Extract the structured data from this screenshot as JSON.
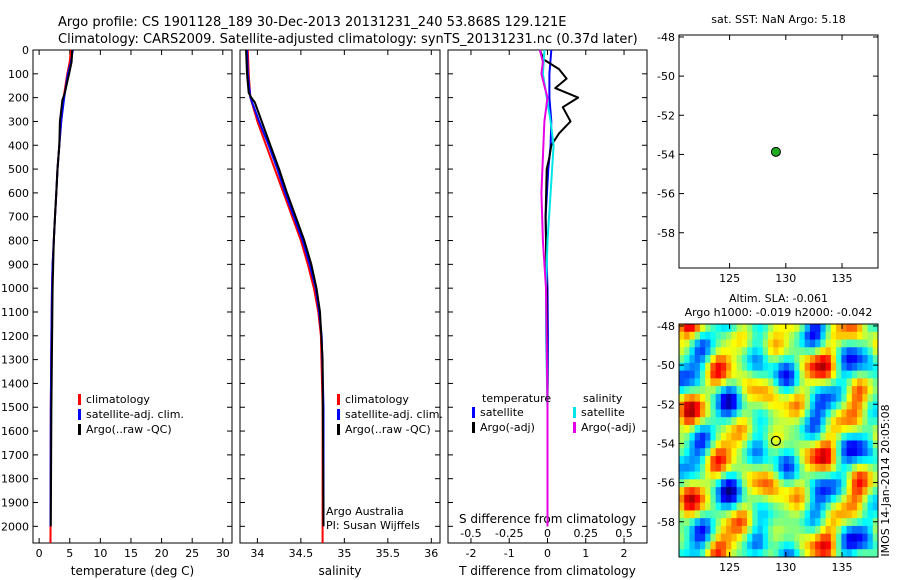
{
  "header": {
    "line1": "Argo profile: CS 1901128_189 30-Dec-2013 20131231_240 53.868S 129.121E",
    "line2": "Climatology: CARS2009. Satellite-adjusted climatology: synTS_20131231.nc (0.37d later)"
  },
  "colors": {
    "climatology": "#ff0000",
    "satellite": "#0000ff",
    "argo": "#000000",
    "s_satellite": "#00e5e5",
    "s_argo": "#e600e6",
    "marker_fill": "#22aa22"
  },
  "chart_data": [
    {
      "id": "temperature",
      "type": "line",
      "xlabel": "temperature (deg C)",
      "ylabel": "",
      "xlim": [
        -1,
        31.5
      ],
      "ylim": [
        0,
        2070
      ],
      "y_reversed": true,
      "grid": false,
      "xticks": [
        0,
        5,
        10,
        15,
        20,
        25,
        30
      ],
      "yticks": [
        0,
        100,
        200,
        300,
        400,
        500,
        600,
        700,
        800,
        900,
        1000,
        1100,
        1200,
        1300,
        1400,
        1500,
        1600,
        1700,
        1800,
        1900,
        2000
      ],
      "legend": {
        "position": "lower-center",
        "entries": [
          "climatology",
          "satellite-adj. clim.",
          "Argo(..raw -QC)"
        ]
      },
      "series": [
        {
          "name": "climatology",
          "color": "climatology",
          "x": [
            5.2,
            5.0,
            4.6,
            4.0,
            3.6,
            3.3,
            3.0,
            2.8,
            2.6,
            2.4,
            2.2,
            2.1,
            2.0,
            1.9,
            1.85
          ],
          "y": [
            0,
            50,
            100,
            200,
            300,
            400,
            500,
            600,
            700,
            800,
            900,
            1000,
            1200,
            1500,
            2070
          ]
        },
        {
          "name": "satellite-adj. clim.",
          "color": "satellite",
          "x": [
            5.5,
            5.2,
            4.7,
            4.1,
            3.6,
            3.3,
            3.0,
            2.8,
            2.6,
            2.4,
            2.2,
            2.1,
            2.0,
            1.9,
            1.85
          ],
          "y": [
            0,
            50,
            100,
            200,
            300,
            400,
            500,
            600,
            700,
            800,
            900,
            1000,
            1200,
            1500,
            2000
          ]
        },
        {
          "name": "Argo(..raw -QC)",
          "color": "argo",
          "x": [
            5.4,
            5.3,
            4.9,
            4.2,
            3.8,
            3.4,
            3.3,
            3.0,
            2.8,
            2.6,
            2.4,
            2.2,
            2.0,
            1.9
          ],
          "y": [
            0,
            50,
            100,
            180,
            210,
            300,
            400,
            500,
            600,
            700,
            800,
            1000,
            1500,
            2000
          ]
        }
      ]
    },
    {
      "id": "salinity",
      "type": "line",
      "xlabel": "salinity",
      "ylabel": "",
      "xlim": [
        33.8,
        36.1
      ],
      "ylim": [
        0,
        2070
      ],
      "y_reversed": true,
      "grid": false,
      "xticks": [
        34,
        34.5,
        35,
        35.5,
        36
      ],
      "xticklabels": [
        "34",
        "34.5",
        "35",
        "35.5",
        "36"
      ],
      "legend": {
        "position": "lower-center",
        "entries": [
          "climatology",
          "satellite-adj. clim.",
          "Argo(..raw -QC)"
        ]
      },
      "annotation_lines": [
        "Argo Australia",
        "PI: Susan Wijffels"
      ],
      "series": [
        {
          "name": "climatology",
          "color": "climatology",
          "x": [
            33.89,
            33.9,
            33.92,
            34.0,
            34.1,
            34.2,
            34.3,
            34.4,
            34.5,
            34.58,
            34.65,
            34.7,
            34.73,
            34.75,
            34.75
          ],
          "y": [
            0,
            100,
            200,
            300,
            400,
            500,
            600,
            700,
            800,
            900,
            1000,
            1100,
            1200,
            1500,
            2070
          ]
        },
        {
          "name": "satellite-adj. clim.",
          "color": "satellite",
          "x": [
            33.88,
            33.89,
            33.92,
            34.02,
            34.13,
            34.23,
            34.32,
            34.42,
            34.52,
            34.6,
            34.67,
            34.71,
            34.74,
            34.76,
            34.76
          ],
          "y": [
            0,
            100,
            200,
            300,
            400,
            500,
            600,
            700,
            800,
            900,
            1000,
            1100,
            1200,
            1500,
            2000
          ]
        },
        {
          "name": "Argo(..raw -QC)",
          "color": "argo",
          "x": [
            33.87,
            33.88,
            33.9,
            33.93,
            33.97,
            34.05,
            34.15,
            34.25,
            34.34,
            34.44,
            34.54,
            34.62,
            34.68,
            34.72,
            34.75,
            34.76
          ],
          "y": [
            0,
            100,
            180,
            200,
            220,
            300,
            400,
            500,
            600,
            700,
            800,
            900,
            1000,
            1100,
            1300,
            2000
          ]
        }
      ]
    },
    {
      "id": "difference",
      "type": "line",
      "xlabel": "T difference from climatology",
      "xlabel_top": "S difference from climatology",
      "ylabel": "",
      "xlim": [
        -2.6,
        2.6
      ],
      "xlim_salinity": [
        -0.65,
        0.65
      ],
      "ylim": [
        0,
        2070
      ],
      "y_reversed": true,
      "grid": false,
      "xticks": [
        -2,
        -1,
        0,
        1,
        2
      ],
      "xticks_salinity": [
        -0.5,
        -0.25,
        0,
        0.25,
        0.5
      ],
      "xticklabels_salinity": [
        "-0.5",
        "-0.25",
        "0",
        "0.25",
        "0.5"
      ],
      "legend": {
        "position": "lower-center",
        "groups": [
          {
            "title": "temperature",
            "entries": [
              "satellite",
              "Argo(-adj)"
            ]
          },
          {
            "title": "salinity",
            "entries": [
              "satellite",
              "Argo(-adj)"
            ]
          }
        ]
      },
      "series": [
        {
          "name": "satellite",
          "group": "temperature",
          "color": "satellite",
          "x": [
            0.1,
            0.05,
            0.05,
            0.1,
            0.08,
            0.02,
            -0.05,
            -0.02,
            0.0,
            0.01,
            0.0,
            0.0
          ],
          "y": [
            0,
            100,
            200,
            300,
            400,
            500,
            700,
            900,
            1000,
            1200,
            1500,
            2000
          ]
        },
        {
          "name": "Argo(-adj)",
          "group": "temperature",
          "color": "argo",
          "x": [
            -0.2,
            -0.1,
            0.3,
            0.5,
            0.2,
            0.8,
            0.4,
            0.6,
            0.3,
            0.1,
            0.05,
            -0.02,
            -0.05,
            -0.02,
            0.0,
            0.0
          ],
          "y": [
            0,
            40,
            80,
            120,
            160,
            200,
            240,
            300,
            350,
            400,
            450,
            500,
            700,
            1000,
            1500,
            2000
          ]
        },
        {
          "name": "satellite",
          "group": "salinity",
          "color": "s_satellite",
          "x": [
            -0.02,
            -0.03,
            0.02,
            0.04,
            0.03,
            0.02,
            0.0,
            -0.01,
            -0.01,
            0.0,
            0.0
          ],
          "y": [
            0,
            100,
            300,
            400,
            500,
            600,
            800,
            1000,
            1200,
            1500,
            2000
          ]
        },
        {
          "name": "Argo(-adj)",
          "group": "salinity",
          "color": "s_argo",
          "x": [
            -0.05,
            -0.03,
            -0.04,
            -0.02,
            0.0,
            -0.02,
            -0.04,
            -0.03,
            -0.01,
            0.0,
            0.0
          ],
          "y": [
            0,
            50,
            100,
            150,
            200,
            300,
            600,
            800,
            1000,
            1500,
            2000
          ]
        }
      ]
    },
    {
      "id": "location",
      "type": "scatter",
      "title": "sat. SST: NaN Argo: 5.18",
      "xlabel": "",
      "ylabel": "",
      "xlim": [
        120.5,
        138.2
      ],
      "ylim": [
        -59.8,
        -47.9
      ],
      "xticks": [
        125,
        130,
        135
      ],
      "yticks": [
        -48,
        -50,
        -52,
        -54,
        -56,
        -58
      ],
      "grid": false,
      "points": [
        {
          "x": 129.121,
          "y": -53.868
        }
      ]
    },
    {
      "id": "altimetry",
      "type": "heatmap",
      "title_lines": [
        "Altim. SLA: -0.061",
        "Argo h1000: -0.019 h2000: -0.042"
      ],
      "xlabel": "",
      "ylabel": "",
      "xlim": [
        120.5,
        138.2
      ],
      "ylim": [
        -59.8,
        -47.9
      ],
      "xticks": [
        125,
        130,
        135
      ],
      "yticks": [
        -48,
        -50,
        -52,
        -54,
        -56,
        -58
      ],
      "grid": false,
      "colormap": "jet",
      "value_range": [
        -1,
        1
      ],
      "grid_dims": [
        30,
        38
      ],
      "points": [
        {
          "x": 129.121,
          "y": -53.868
        }
      ],
      "side_label": "IMOS 14-Jan-2014 20:05:08"
    }
  ]
}
